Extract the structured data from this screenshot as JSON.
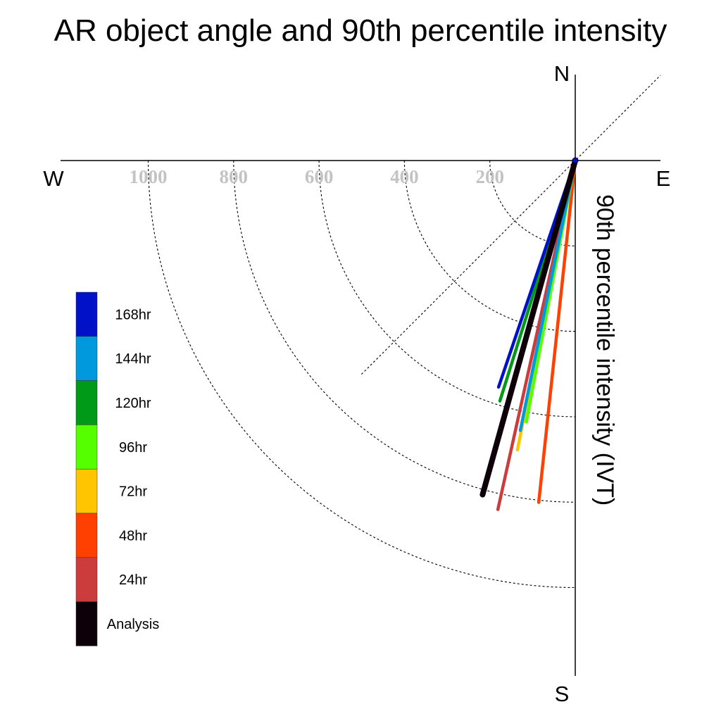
{
  "chart_data": {
    "type": "polar-vector",
    "title": "AR object angle and 90th percentile intensity",
    "radial_label": "90th percentile intensity (IVT)",
    "compass": {
      "north": "N",
      "south": "S",
      "east": "E",
      "west": "W"
    },
    "radial_ticks": [
      {
        "value": 200,
        "label": "200"
      },
      {
        "value": 400,
        "label": "400"
      },
      {
        "value": 600,
        "label": "600"
      },
      {
        "value": 800,
        "label": "800"
      },
      {
        "value": 1000,
        "label": "1000"
      }
    ],
    "radial_max": 1000,
    "guide_direction_deg": 225,
    "legend_position": "left",
    "series": [
      {
        "name": "168hr",
        "color": "#0011c8",
        "direction_deg": 198.7,
        "magnitude": 560
      },
      {
        "name": "144hr",
        "color": "#0099dd",
        "direction_deg": 191.5,
        "magnitude": 645
      },
      {
        "name": "120hr",
        "color": "#009a18",
        "direction_deg": 197.4,
        "magnitude": 590
      },
      {
        "name": "96hr",
        "color": "#55ff00",
        "direction_deg": 190.6,
        "magnitude": 623
      },
      {
        "name": "72hr",
        "color": "#ffc500",
        "direction_deg": 191.3,
        "magnitude": 691
      },
      {
        "name": "48hr",
        "color": "#ff4000",
        "direction_deg": 186.1,
        "magnitude": 805
      },
      {
        "name": "24hr",
        "color": "#cc3c3c",
        "direction_deg": 192.5,
        "magnitude": 837
      },
      {
        "name": "Analysis",
        "color": "#0d0009",
        "direction_deg": 195.5,
        "magnitude": 812
      }
    ],
    "grid": true
  }
}
